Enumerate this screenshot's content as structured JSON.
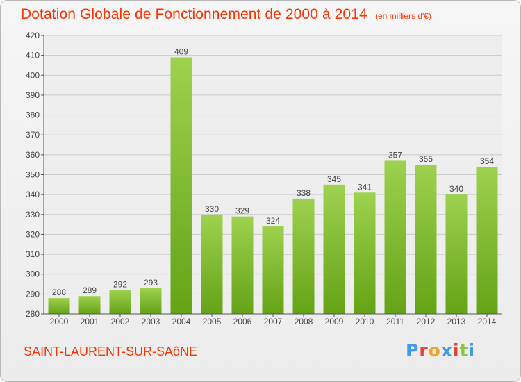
{
  "header": {
    "title": "Dotation Globale de Fonctionnement de 2000 à 2014",
    "subtitle": "(en milliers d'€)"
  },
  "footer": {
    "commune": "SAINT-LAURENT-SUR-SAôNE",
    "logo_text": "Proxiti",
    "logo_colors": [
      "#3d9be8",
      "#e84030",
      "#f4a020",
      "#3d9be8",
      "#e84030",
      "#8cc63f",
      "#3d9be8"
    ]
  },
  "chart_data": {
    "type": "bar",
    "categories": [
      "2000",
      "2001",
      "2002",
      "2003",
      "2004",
      "2005",
      "2006",
      "2007",
      "2008",
      "2009",
      "2010",
      "2011",
      "2012",
      "2013",
      "2014"
    ],
    "values": [
      288,
      289,
      292,
      293,
      409,
      330,
      329,
      324,
      338,
      345,
      341,
      357,
      355,
      340,
      354
    ],
    "ylim": [
      280,
      420
    ],
    "yticks": [
      280,
      290,
      300,
      310,
      320,
      330,
      340,
      350,
      360,
      370,
      380,
      390,
      400,
      410,
      420
    ],
    "grid": true,
    "bar_color": "#7cbf2a",
    "title": "Dotation Globale de Fonctionnement de 2000 à 2014",
    "xlabel": "",
    "ylabel": ""
  }
}
